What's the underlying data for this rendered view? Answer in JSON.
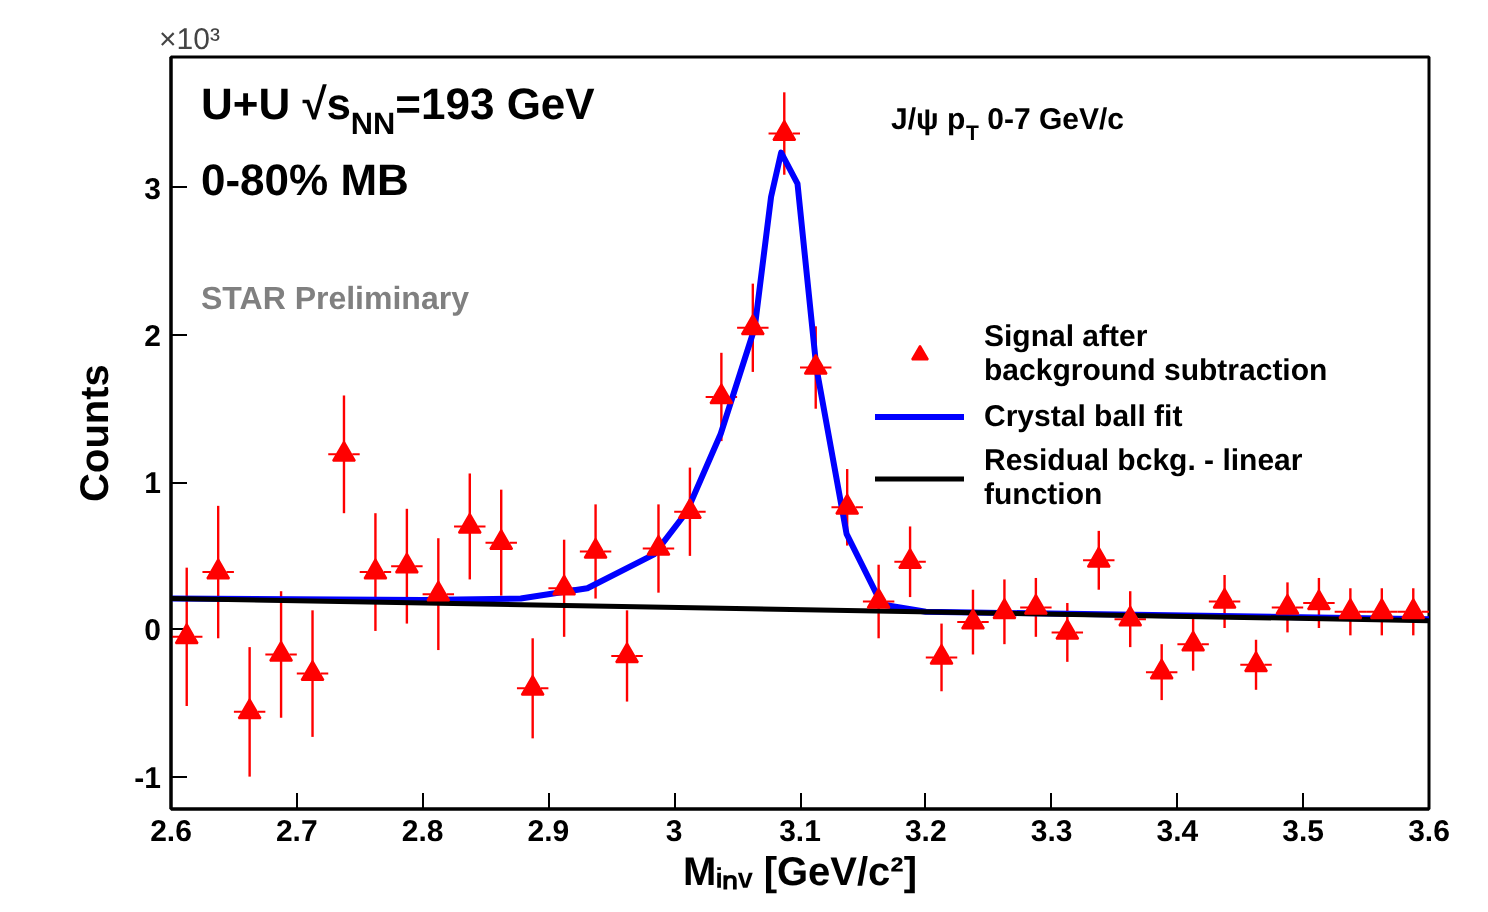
{
  "chart_data": {
    "type": "scatter",
    "xlabel": "Mᵢₙᵥ [GeV/c²]",
    "ylabel": "Counts",
    "legend_title": "J/ψ p$_{T}$ 0-7 GeV/c",
    "annotations": [
      "×10³",
      "U+U  √s$_{NN}$=193 GeV",
      "0-80% MB",
      "STAR Preliminary"
    ],
    "xlim": [
      2.6,
      3.6
    ],
    "ylim": [
      -1.22,
      3.89
    ],
    "xticks": [
      2.6,
      2.7,
      2.8,
      2.9,
      3,
      3.1,
      3.2,
      3.3,
      3.4,
      3.5,
      3.6
    ],
    "yticks": [
      -1,
      0,
      1,
      2,
      3
    ],
    "grid": false,
    "legend": "top right",
    "x": [
      2.6125,
      2.6375,
      2.6625,
      2.6875,
      2.7125,
      2.7375,
      2.7625,
      2.7875,
      2.8125,
      2.8375,
      2.8625,
      2.8875,
      2.9125,
      2.9375,
      2.9625,
      2.9875,
      3.0125,
      3.0375,
      3.0625,
      3.0875,
      3.1125,
      3.1375,
      3.1625,
      3.1875,
      3.2125,
      3.2375,
      3.2625,
      3.2875,
      3.3125,
      3.3375,
      3.3625,
      3.3875,
      3.4125,
      3.4375,
      3.4625,
      3.4875,
      3.5125,
      3.5375,
      3.5625,
      3.5875
    ],
    "series": [
      {
        "name": "Signal after\nbackground subtraction",
        "marker": "triangle",
        "color": "#ff0000",
        "values": [
          -0.05,
          0.39,
          -0.56,
          -0.17,
          -0.3,
          1.19,
          0.39,
          0.43,
          0.24,
          0.7,
          0.59,
          -0.4,
          0.28,
          0.53,
          -0.18,
          0.55,
          0.8,
          1.58,
          2.05,
          3.37,
          1.78,
          0.83,
          0.19,
          0.46,
          -0.19,
          0.05,
          0.12,
          0.15,
          -0.02,
          0.47,
          0.07,
          -0.29,
          -0.1,
          0.19,
          -0.24,
          0.15,
          0.18,
          0.12,
          0.12,
          0.12
        ],
        "errors": [
          0.47,
          0.45,
          0.44,
          0.43,
          0.43,
          0.4,
          0.4,
          0.39,
          0.38,
          0.36,
          0.36,
          0.34,
          0.33,
          0.32,
          0.31,
          0.3,
          0.3,
          0.3,
          0.3,
          0.28,
          0.28,
          0.26,
          0.25,
          0.24,
          0.23,
          0.22,
          0.22,
          0.2,
          0.2,
          0.2,
          0.19,
          0.19,
          0.18,
          0.18,
          0.17,
          0.17,
          0.17,
          0.16,
          0.16,
          0.16
        ],
        "xerrors": [
          0.0125,
          0.0125,
          0.0125,
          0.0125,
          0.0125,
          0.0125,
          0.0125,
          0.0125,
          0.0125,
          0.0125,
          0.0125,
          0.0125,
          0.0125,
          0.0125,
          0.0125,
          0.0125,
          0.0125,
          0.0125,
          0.0125,
          0.0125,
          0.0125,
          0.0125,
          0.0125,
          0.0125,
          0.0125,
          0.0125,
          0.0125,
          0.0125,
          0.0125,
          0.0125,
          0.0125,
          0.0125,
          0.0125,
          0.0125,
          0.0125,
          0.0125,
          0.0125,
          0.0125,
          0.0125,
          0.0125
        ]
      },
      {
        "name": "Crystal ball fit",
        "type": "line",
        "color": "#0000ff",
        "line_style": "solid",
        "x": [
          2.6,
          2.8,
          2.878,
          2.931,
          2.984,
          3.01,
          3.037,
          3.064,
          3.077,
          3.085,
          3.098,
          3.113,
          3.137,
          3.165,
          3.2,
          3.6
        ],
        "values": [
          0.21,
          0.2,
          0.21,
          0.28,
          0.51,
          0.8,
          1.33,
          2.05,
          2.94,
          3.24,
          3.03,
          1.78,
          0.65,
          0.17,
          0.12,
          0.07
        ]
      },
      {
        "name": "Residual bckg. - linear\nfunction",
        "type": "line",
        "color": "#000000",
        "line_style": "solid",
        "x": [
          2.6,
          3.6
        ],
        "values": [
          0.21,
          0.06
        ]
      }
    ]
  }
}
